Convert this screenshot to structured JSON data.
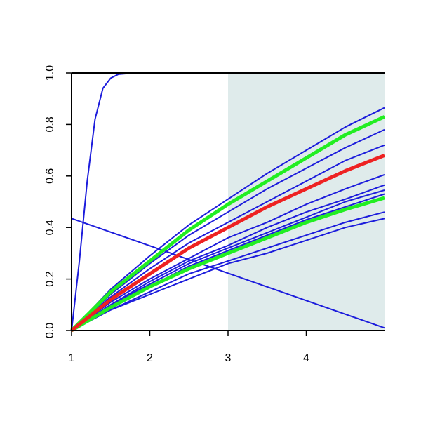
{
  "chart_data": {
    "type": "line",
    "xlim": [
      1,
      5
    ],
    "ylim": [
      0,
      1
    ],
    "xticks": [
      1,
      2,
      3,
      4
    ],
    "yticks": [
      {
        "value": 0,
        "label": "0.0"
      },
      0.2,
      0.4,
      0.6,
      0.8,
      {
        "value": 1,
        "label": "1.0"
      }
    ],
    "shade": {
      "xmin": 3,
      "xmax": 5,
      "color": "#dfebeb"
    },
    "series": [
      {
        "color": "#1c1cdc",
        "linewidth": 2,
        "x": [
          1,
          1.1,
          1.2,
          1.3,
          1.4,
          1.5,
          1.6,
          1.8,
          2,
          3,
          4,
          5
        ],
        "values": [
          0,
          0.27,
          0.58,
          0.82,
          0.94,
          0.98,
          0.995,
          1,
          1,
          1,
          1,
          1
        ]
      },
      {
        "color": "#1c1cdc",
        "linewidth": 2,
        "x": [
          1,
          5
        ],
        "values": [
          0.435,
          0.01
        ]
      },
      {
        "color": "#1c1cdc",
        "linewidth": 2,
        "x": [
          1,
          1.5,
          2,
          2.5,
          3,
          3.5,
          4,
          4.5,
          5
        ],
        "values": [
          0,
          0.16,
          0.29,
          0.41,
          0.51,
          0.61,
          0.7,
          0.79,
          0.865
        ]
      },
      {
        "color": "#1c1cdc",
        "linewidth": 2,
        "x": [
          1,
          1.5,
          2,
          2.5,
          3,
          3.5,
          4,
          4.5,
          5
        ],
        "values": [
          0,
          0.14,
          0.26,
          0.37,
          0.46,
          0.55,
          0.63,
          0.71,
          0.78
        ]
      },
      {
        "color": "#1c1cdc",
        "linewidth": 2,
        "x": [
          1,
          1.5,
          2,
          2.5,
          3,
          3.5,
          4,
          4.5,
          5
        ],
        "values": [
          0,
          0.13,
          0.24,
          0.34,
          0.42,
          0.5,
          0.58,
          0.66,
          0.72
        ]
      },
      {
        "color": "#1c1cdc",
        "linewidth": 2,
        "x": [
          1,
          1.5,
          2,
          2.5,
          3,
          3.5,
          4,
          4.5,
          5
        ],
        "values": [
          0,
          0.11,
          0.2,
          0.28,
          0.36,
          0.42,
          0.49,
          0.55,
          0.605
        ]
      },
      {
        "color": "#1c1cdc",
        "linewidth": 2,
        "x": [
          1,
          1.5,
          2,
          2.5,
          3,
          3.5,
          4,
          4.5,
          5
        ],
        "values": [
          0,
          0.1,
          0.19,
          0.27,
          0.33,
          0.4,
          0.46,
          0.51,
          0.565
        ]
      },
      {
        "color": "#1c1cdc",
        "linewidth": 2,
        "x": [
          1,
          1.5,
          2,
          2.5,
          3,
          3.5,
          4,
          4.5,
          5
        ],
        "values": [
          0,
          0.1,
          0.18,
          0.26,
          0.32,
          0.38,
          0.44,
          0.5,
          0.545
        ]
      },
      {
        "color": "#1c1cdc",
        "linewidth": 2,
        "x": [
          1,
          1.5,
          2,
          2.5,
          3,
          3.5,
          4,
          4.5,
          5
        ],
        "values": [
          0,
          0.1,
          0.17,
          0.25,
          0.31,
          0.37,
          0.43,
          0.48,
          0.53
        ]
      },
      {
        "color": "#1c1cdc",
        "linewidth": 2,
        "x": [
          1,
          1.5,
          2,
          2.5,
          3,
          3.5,
          4,
          4.5,
          5
        ],
        "values": [
          0,
          0.08,
          0.15,
          0.22,
          0.27,
          0.32,
          0.37,
          0.42,
          0.46
        ]
      },
      {
        "color": "#1c1cdc",
        "linewidth": 2,
        "x": [
          1,
          1.5,
          2,
          2.5,
          3,
          3.5,
          4,
          4.5,
          5
        ],
        "values": [
          0,
          0.08,
          0.14,
          0.2,
          0.26,
          0.3,
          0.35,
          0.4,
          0.435
        ]
      },
      {
        "color": "#22ee22",
        "linewidth": 5,
        "x": [
          1,
          1.5,
          2,
          2.5,
          3,
          3.5,
          4,
          4.5,
          5
        ],
        "values": [
          0,
          0.15,
          0.27,
          0.39,
          0.49,
          0.58,
          0.67,
          0.76,
          0.83
        ]
      },
      {
        "color": "#22ee22",
        "linewidth": 5,
        "x": [
          1,
          1.5,
          2,
          2.5,
          3,
          3.5,
          4,
          4.5,
          5
        ],
        "values": [
          0,
          0.09,
          0.17,
          0.24,
          0.3,
          0.36,
          0.42,
          0.47,
          0.515
        ]
      },
      {
        "color": "#ee2222",
        "linewidth": 5,
        "x": [
          1,
          1.5,
          2,
          2.5,
          3,
          3.5,
          4,
          4.5,
          5
        ],
        "values": [
          0,
          0.12,
          0.22,
          0.32,
          0.4,
          0.48,
          0.55,
          0.62,
          0.68
        ]
      }
    ]
  }
}
